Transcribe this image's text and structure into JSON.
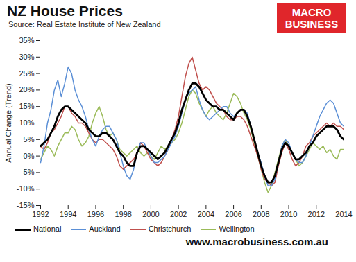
{
  "chart_data": {
    "type": "line",
    "title": "NZ House Prices",
    "subtitle": "Source: Real Estate Institute of New Zealand",
    "logo": [
      "MACRO",
      "BUSINESS"
    ],
    "footer": "www.macrobusiness.com.au",
    "y_label": "Annual Change (Trend)",
    "legend": "bottom",
    "grid": false,
    "xlim": [
      1992,
      2014
    ],
    "xticks": [
      1992,
      1994,
      1996,
      1998,
      2000,
      2002,
      2004,
      2006,
      2008,
      2010,
      2012,
      2014
    ],
    "ylim": [
      -15,
      35
    ],
    "yticks": [
      {
        "value": -15,
        "label": "-15%"
      },
      {
        "value": -10,
        "label": "-10%"
      },
      {
        "value": -5,
        "label": "-5%"
      },
      {
        "value": 0,
        "label": "0%"
      },
      {
        "value": 5,
        "label": "5%"
      },
      {
        "value": 10,
        "label": "10%"
      },
      {
        "value": 15,
        "label": "15%"
      },
      {
        "value": 20,
        "label": "20%"
      },
      {
        "value": 25,
        "label": "25%"
      },
      {
        "value": 30,
        "label": "30%"
      },
      {
        "value": 35,
        "label": "35%"
      }
    ],
    "x": [
      1992,
      1992.25,
      1992.5,
      1992.75,
      1993,
      1993.25,
      1993.5,
      1993.75,
      1994,
      1994.25,
      1994.5,
      1994.75,
      1995,
      1995.25,
      1995.5,
      1995.75,
      1996,
      1996.25,
      1996.5,
      1996.75,
      1997,
      1997.25,
      1997.5,
      1997.75,
      1998,
      1998.25,
      1998.5,
      1998.75,
      1999,
      1999.25,
      1999.5,
      1999.75,
      2000,
      2000.25,
      2000.5,
      2000.75,
      2001,
      2001.25,
      2001.5,
      2001.75,
      2002,
      2002.25,
      2002.5,
      2002.75,
      2003,
      2003.25,
      2003.5,
      2003.75,
      2004,
      2004.25,
      2004.5,
      2004.75,
      2005,
      2005.25,
      2005.5,
      2005.75,
      2006,
      2006.25,
      2006.5,
      2006.75,
      2007,
      2007.25,
      2007.5,
      2007.75,
      2008,
      2008.25,
      2008.5,
      2008.75,
      2009,
      2009.25,
      2009.5,
      2009.75,
      2010,
      2010.25,
      2010.5,
      2010.75,
      2011,
      2011.25,
      2011.5,
      2011.75,
      2012,
      2012.25,
      2012.5,
      2012.75,
      2013,
      2013.25,
      2013.5,
      2013.75,
      2014
    ],
    "series": [
      {
        "name": "National",
        "color": "#000000",
        "values": [
          3,
          4,
          5,
          7,
          9,
          12,
          14,
          15,
          15,
          14,
          13,
          12,
          11,
          10,
          8,
          7,
          6,
          6,
          7,
          7,
          6,
          5,
          3,
          1,
          0,
          -2,
          -3,
          -3,
          1,
          3,
          3,
          2,
          1,
          0,
          -1,
          0,
          1,
          3,
          5,
          7,
          10,
          14,
          17,
          20,
          22,
          22,
          21,
          19,
          17,
          16,
          15,
          15,
          14,
          14,
          13,
          12,
          11,
          13,
          14,
          14,
          12,
          9,
          5,
          1,
          -3,
          -6,
          -8,
          -8,
          -6,
          -2,
          2,
          4,
          3,
          1,
          -1,
          -1,
          0,
          1,
          3,
          4,
          6,
          7,
          8,
          9,
          9,
          9,
          8,
          6,
          5
        ]
      },
      {
        "name": "Auckland",
        "color": "#5b8fd6",
        "values": [
          -2,
          3,
          10,
          14,
          20,
          23,
          18,
          22,
          27,
          25,
          20,
          17,
          15,
          12,
          8,
          5,
          3,
          6,
          8,
          9,
          9,
          7,
          5,
          1,
          -3,
          -6,
          -7,
          -4,
          1,
          4,
          4,
          2,
          0,
          -2,
          -2,
          -1,
          0,
          2,
          4,
          6,
          9,
          13,
          17,
          19,
          20,
          21,
          17,
          14,
          12,
          11,
          12,
          13,
          14,
          15,
          15,
          13,
          12,
          13,
          14,
          14,
          13,
          9,
          5,
          1,
          -2,
          -6,
          -9,
          -9,
          -7,
          -2,
          3,
          5,
          4,
          1,
          -1,
          -2,
          -2,
          0,
          3,
          6,
          9,
          12,
          14,
          16,
          17,
          16,
          13,
          10,
          9
        ]
      },
      {
        "name": "Christchurch",
        "color": "#c0504d",
        "values": [
          3,
          2,
          4,
          7,
          8,
          10,
          12,
          15,
          15,
          13,
          12,
          10,
          10,
          9,
          7,
          5,
          4,
          5,
          5,
          4,
          3,
          2,
          0,
          -3,
          -4,
          -3,
          -2,
          -1,
          1,
          4,
          3,
          1,
          -1,
          -2,
          -3,
          -2,
          0,
          2,
          5,
          8,
          12,
          18,
          24,
          28,
          30,
          26,
          22,
          20,
          21,
          20,
          18,
          16,
          15,
          14,
          12,
          11,
          11,
          12,
          12,
          11,
          9,
          6,
          3,
          0,
          -4,
          -7,
          -8,
          -9,
          -8,
          -3,
          1,
          4,
          2,
          -1,
          -3,
          -2,
          0,
          3,
          4,
          6,
          7,
          8,
          9,
          10,
          9,
          10,
          9,
          9,
          8
        ]
      },
      {
        "name": "Wellington",
        "color": "#9bbb59",
        "values": [
          -1,
          1,
          3,
          2,
          0,
          3,
          5,
          7,
          7,
          9,
          8,
          5,
          3,
          4,
          6,
          10,
          13,
          15,
          12,
          8,
          6,
          7,
          5,
          2,
          1,
          0,
          1,
          2,
          3,
          1,
          0,
          1,
          0,
          -1,
          1,
          3,
          2,
          3,
          4,
          5,
          7,
          10,
          14,
          18,
          20,
          19,
          16,
          14,
          12,
          14,
          15,
          13,
          12,
          11,
          13,
          16,
          19,
          18,
          16,
          13,
          11,
          8,
          4,
          0,
          -4,
          -8,
          -11,
          -9,
          -5,
          -1,
          3,
          5,
          3,
          1,
          -1,
          -3,
          -2,
          0,
          2,
          4,
          3,
          2,
          3,
          1,
          2,
          0,
          -1,
          2,
          2
        ]
      }
    ]
  }
}
